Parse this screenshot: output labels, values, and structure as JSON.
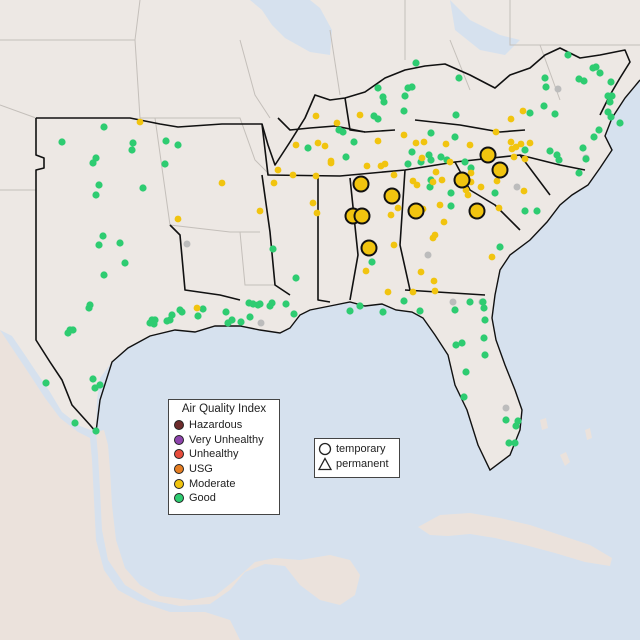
{
  "map": {
    "colors": {
      "water": "#d6e1ee",
      "land": "#ede8e4",
      "mexico_land": "#ebe2dc",
      "state_border": "#c4bfba",
      "focus_border": "#111111",
      "Good": "#2ecc71",
      "Moderate": "#f1c40f",
      "USG": "#e67e22",
      "Unhealthy": "#e74c3c",
      "Very Unhealthy": "#8e44ad",
      "Hazardous": "#6d2b2b",
      "no_data": "#bcbcbc"
    }
  },
  "legend": {
    "title": "Air Quality Index",
    "items": [
      {
        "label": "Hazardous",
        "color": "#6d2b2b"
      },
      {
        "label": "Very Unhealthy",
        "color": "#8e44ad"
      },
      {
        "label": "Unhealthy",
        "color": "#e74c3c"
      },
      {
        "label": "USG",
        "color": "#e67e22"
      },
      {
        "label": "Moderate",
        "color": "#f1c40f"
      },
      {
        "label": "Good",
        "color": "#2ecc71"
      }
    ]
  },
  "monitor_legend": {
    "temporary_label": "temporary",
    "permanent_label": "permanent"
  },
  "monitor_counts": {
    "large_moderate_temporary": 10
  }
}
